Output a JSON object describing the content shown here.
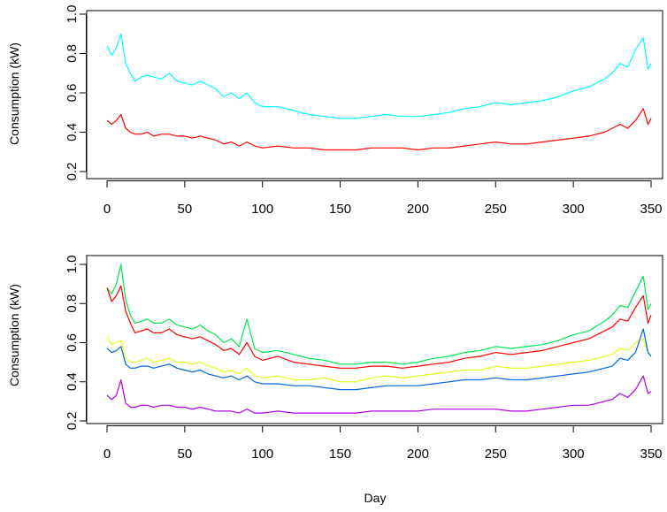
{
  "chart_data": [
    {
      "type": "line",
      "ylabel": "Consumption (kW)",
      "xlabel": "",
      "xlim": [
        0,
        350
      ],
      "ylim": [
        0.2,
        1.0
      ],
      "x_ticks": [
        0,
        50,
        100,
        150,
        200,
        250,
        300,
        350
      ],
      "y_ticks": [
        0.2,
        0.4,
        0.6,
        0.8,
        1.0
      ],
      "x_tick_labels": [
        "0",
        "50",
        "100",
        "150",
        "200",
        "250",
        "300",
        "350"
      ],
      "y_tick_labels": [
        "0.2",
        "0.4",
        "0.6",
        "0.8",
        "1.0"
      ],
      "grid": false,
      "series": [
        {
          "color": "#00ffff",
          "x": [
            0,
            3,
            6,
            9,
            12,
            15,
            18,
            22,
            26,
            30,
            35,
            40,
            45,
            50,
            55,
            60,
            65,
            70,
            75,
            80,
            85,
            90,
            95,
            100,
            110,
            120,
            130,
            140,
            150,
            160,
            170,
            180,
            190,
            200,
            210,
            220,
            230,
            240,
            250,
            260,
            270,
            280,
            290,
            300,
            310,
            320,
            325,
            330,
            335,
            340,
            345,
            348,
            350
          ],
          "y": [
            0.84,
            0.79,
            0.83,
            0.9,
            0.75,
            0.7,
            0.66,
            0.68,
            0.69,
            0.68,
            0.67,
            0.7,
            0.66,
            0.65,
            0.64,
            0.66,
            0.64,
            0.62,
            0.58,
            0.6,
            0.57,
            0.6,
            0.55,
            0.53,
            0.53,
            0.51,
            0.49,
            0.48,
            0.47,
            0.47,
            0.48,
            0.49,
            0.48,
            0.48,
            0.49,
            0.5,
            0.52,
            0.53,
            0.55,
            0.54,
            0.55,
            0.56,
            0.58,
            0.61,
            0.63,
            0.67,
            0.7,
            0.75,
            0.73,
            0.82,
            0.88,
            0.72,
            0.75
          ]
        },
        {
          "color": "#ff0000",
          "x": [
            0,
            3,
            6,
            9,
            12,
            15,
            18,
            22,
            26,
            30,
            35,
            40,
            45,
            50,
            55,
            60,
            65,
            70,
            75,
            80,
            85,
            90,
            95,
            100,
            110,
            120,
            130,
            140,
            150,
            160,
            170,
            180,
            190,
            200,
            210,
            220,
            230,
            240,
            250,
            260,
            270,
            280,
            290,
            300,
            310,
            320,
            325,
            330,
            335,
            340,
            345,
            348,
            350
          ],
          "y": [
            0.46,
            0.44,
            0.46,
            0.49,
            0.42,
            0.4,
            0.39,
            0.39,
            0.4,
            0.38,
            0.39,
            0.39,
            0.38,
            0.38,
            0.37,
            0.38,
            0.37,
            0.36,
            0.34,
            0.35,
            0.33,
            0.35,
            0.33,
            0.32,
            0.33,
            0.32,
            0.32,
            0.31,
            0.31,
            0.31,
            0.32,
            0.32,
            0.32,
            0.31,
            0.32,
            0.32,
            0.33,
            0.34,
            0.35,
            0.34,
            0.34,
            0.35,
            0.36,
            0.37,
            0.38,
            0.4,
            0.42,
            0.44,
            0.42,
            0.46,
            0.52,
            0.44,
            0.47
          ]
        }
      ]
    },
    {
      "type": "line",
      "ylabel": "Consumption (kW)",
      "xlabel": "Day",
      "xlim": [
        0,
        350
      ],
      "ylim": [
        0.2,
        1.0
      ],
      "x_ticks": [
        0,
        50,
        100,
        150,
        200,
        250,
        300,
        350
      ],
      "y_ticks": [
        0.2,
        0.4,
        0.6,
        0.8,
        1.0
      ],
      "x_tick_labels": [
        "0",
        "50",
        "100",
        "150",
        "200",
        "250",
        "300",
        "350"
      ],
      "y_tick_labels": [
        "0.2",
        "0.4",
        "0.6",
        "0.8",
        "1.0"
      ],
      "grid": false,
      "series": [
        {
          "color": "#00e64d",
          "x": [
            0,
            3,
            6,
            9,
            12,
            15,
            18,
            22,
            26,
            30,
            35,
            40,
            45,
            50,
            55,
            60,
            65,
            70,
            75,
            80,
            85,
            90,
            95,
            100,
            110,
            120,
            130,
            140,
            150,
            160,
            170,
            180,
            190,
            200,
            210,
            220,
            230,
            240,
            250,
            260,
            270,
            280,
            290,
            300,
            310,
            320,
            325,
            330,
            335,
            340,
            345,
            348,
            350
          ],
          "y": [
            0.88,
            0.85,
            0.9,
            1.0,
            0.82,
            0.74,
            0.7,
            0.71,
            0.72,
            0.7,
            0.7,
            0.72,
            0.69,
            0.68,
            0.67,
            0.69,
            0.66,
            0.64,
            0.6,
            0.62,
            0.58,
            0.72,
            0.57,
            0.55,
            0.56,
            0.54,
            0.52,
            0.51,
            0.49,
            0.49,
            0.5,
            0.5,
            0.49,
            0.5,
            0.52,
            0.53,
            0.55,
            0.56,
            0.58,
            0.57,
            0.58,
            0.59,
            0.61,
            0.64,
            0.66,
            0.71,
            0.74,
            0.79,
            0.78,
            0.86,
            0.94,
            0.77,
            0.8
          ]
        },
        {
          "color": "#ff0000",
          "x": [
            0,
            3,
            6,
            9,
            12,
            15,
            18,
            22,
            26,
            30,
            35,
            40,
            45,
            50,
            55,
            60,
            65,
            70,
            75,
            80,
            85,
            90,
            95,
            100,
            110,
            120,
            130,
            140,
            150,
            160,
            170,
            180,
            190,
            200,
            210,
            220,
            230,
            240,
            250,
            260,
            270,
            280,
            290,
            300,
            310,
            320,
            325,
            330,
            335,
            340,
            345,
            348,
            350
          ],
          "y": [
            0.88,
            0.81,
            0.84,
            0.89,
            0.76,
            0.7,
            0.65,
            0.66,
            0.67,
            0.65,
            0.65,
            0.67,
            0.64,
            0.63,
            0.62,
            0.63,
            0.61,
            0.59,
            0.56,
            0.57,
            0.54,
            0.6,
            0.53,
            0.51,
            0.53,
            0.5,
            0.49,
            0.48,
            0.47,
            0.47,
            0.48,
            0.48,
            0.47,
            0.48,
            0.49,
            0.5,
            0.52,
            0.53,
            0.55,
            0.54,
            0.55,
            0.56,
            0.58,
            0.6,
            0.62,
            0.66,
            0.68,
            0.72,
            0.71,
            0.78,
            0.84,
            0.7,
            0.74
          ]
        },
        {
          "color": "#e6ff1a",
          "x": [
            0,
            3,
            6,
            9,
            12,
            15,
            18,
            22,
            26,
            30,
            35,
            40,
            45,
            50,
            55,
            60,
            65,
            70,
            75,
            80,
            85,
            90,
            95,
            100,
            110,
            120,
            130,
            140,
            150,
            160,
            170,
            180,
            190,
            200,
            210,
            220,
            230,
            240,
            250,
            260,
            270,
            280,
            290,
            300,
            310,
            320,
            325,
            330,
            335,
            340,
            345,
            348,
            350
          ],
          "y": [
            0.63,
            0.59,
            0.6,
            0.61,
            0.52,
            0.5,
            0.5,
            0.51,
            0.52,
            0.5,
            0.51,
            0.52,
            0.5,
            0.5,
            0.49,
            0.5,
            0.48,
            0.47,
            0.45,
            0.46,
            0.44,
            0.47,
            0.43,
            0.42,
            0.43,
            0.41,
            0.41,
            0.42,
            0.4,
            0.4,
            0.42,
            0.43,
            0.42,
            0.43,
            0.44,
            0.45,
            0.46,
            0.46,
            0.48,
            0.47,
            0.47,
            0.48,
            0.49,
            0.5,
            0.51,
            0.53,
            0.54,
            0.57,
            0.56,
            0.6,
            0.62,
            0.55,
            0.54
          ]
        },
        {
          "color": "#0066dd",
          "x": [
            0,
            3,
            6,
            9,
            12,
            15,
            18,
            22,
            26,
            30,
            35,
            40,
            45,
            50,
            55,
            60,
            65,
            70,
            75,
            80,
            85,
            90,
            95,
            100,
            110,
            120,
            130,
            140,
            150,
            160,
            170,
            180,
            190,
            200,
            210,
            220,
            230,
            240,
            250,
            260,
            270,
            280,
            290,
            300,
            310,
            320,
            325,
            330,
            335,
            340,
            345,
            348,
            350
          ],
          "y": [
            0.57,
            0.55,
            0.56,
            0.58,
            0.49,
            0.47,
            0.47,
            0.48,
            0.48,
            0.47,
            0.48,
            0.49,
            0.47,
            0.46,
            0.45,
            0.46,
            0.44,
            0.43,
            0.42,
            0.43,
            0.41,
            0.43,
            0.4,
            0.39,
            0.39,
            0.38,
            0.38,
            0.37,
            0.36,
            0.36,
            0.37,
            0.38,
            0.38,
            0.38,
            0.39,
            0.4,
            0.41,
            0.41,
            0.42,
            0.41,
            0.41,
            0.42,
            0.43,
            0.44,
            0.45,
            0.47,
            0.48,
            0.52,
            0.51,
            0.55,
            0.67,
            0.55,
            0.53
          ]
        },
        {
          "color": "#b300e6",
          "x": [
            0,
            3,
            6,
            9,
            12,
            15,
            18,
            22,
            26,
            30,
            35,
            40,
            45,
            50,
            55,
            60,
            65,
            70,
            75,
            80,
            85,
            90,
            95,
            100,
            110,
            120,
            130,
            140,
            150,
            160,
            170,
            180,
            190,
            200,
            210,
            220,
            230,
            240,
            250,
            260,
            270,
            280,
            290,
            300,
            310,
            320,
            325,
            330,
            335,
            340,
            345,
            348,
            350
          ],
          "y": [
            0.33,
            0.31,
            0.33,
            0.41,
            0.29,
            0.27,
            0.27,
            0.28,
            0.28,
            0.27,
            0.28,
            0.28,
            0.27,
            0.27,
            0.26,
            0.27,
            0.26,
            0.25,
            0.25,
            0.25,
            0.24,
            0.26,
            0.24,
            0.24,
            0.25,
            0.24,
            0.24,
            0.24,
            0.24,
            0.24,
            0.25,
            0.25,
            0.25,
            0.25,
            0.26,
            0.26,
            0.26,
            0.26,
            0.26,
            0.25,
            0.25,
            0.26,
            0.27,
            0.28,
            0.28,
            0.3,
            0.31,
            0.34,
            0.32,
            0.36,
            0.43,
            0.34,
            0.35
          ]
        }
      ]
    }
  ]
}
